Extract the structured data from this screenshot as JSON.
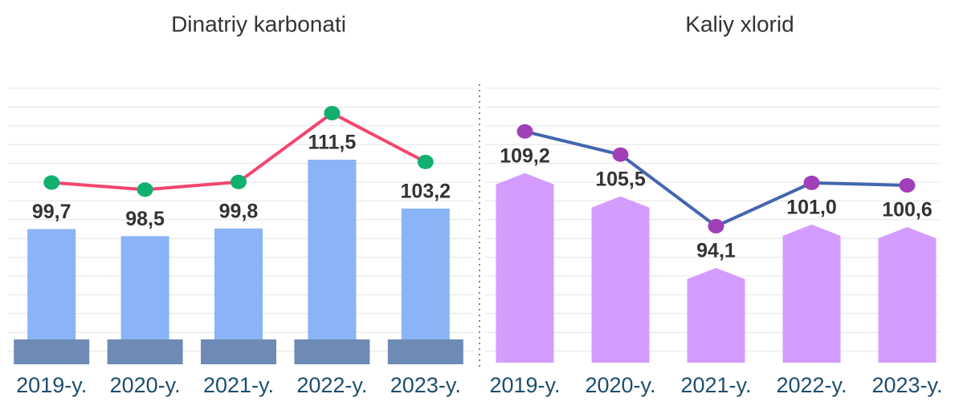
{
  "chart_data": [
    {
      "type": "bar",
      "title": "Dinatriy karbonati",
      "categories": [
        "2019-y.",
        "2020-y.",
        "2021-y.",
        "2022-y.",
        "2023-y."
      ],
      "values": [
        99.7,
        98.5,
        99.8,
        111.5,
        103.2
      ],
      "value_labels": [
        "99,7",
        "98,5",
        "99,8",
        "111,5",
        "103,2"
      ],
      "color": "#8ab4f5",
      "base_color": "#6e8bb5",
      "line_color": "#f2466e",
      "marker_color": "#12b06e",
      "ylim": [
        77,
        125
      ]
    },
    {
      "type": "bar",
      "title": "Kaliy xlorid",
      "categories": [
        "2019-y.",
        "2020-y.",
        "2021-y.",
        "2022-y.",
        "2023-y."
      ],
      "values": [
        109.2,
        105.5,
        94.1,
        101.0,
        100.6
      ],
      "value_labels": [
        "109,2",
        "105,5",
        "94,1",
        "101,0",
        "100,6"
      ],
      "color": "#d59cff",
      "line_color": "#4466b0",
      "marker_color": "#a040b8",
      "ylim": [
        79,
        124
      ]
    }
  ]
}
